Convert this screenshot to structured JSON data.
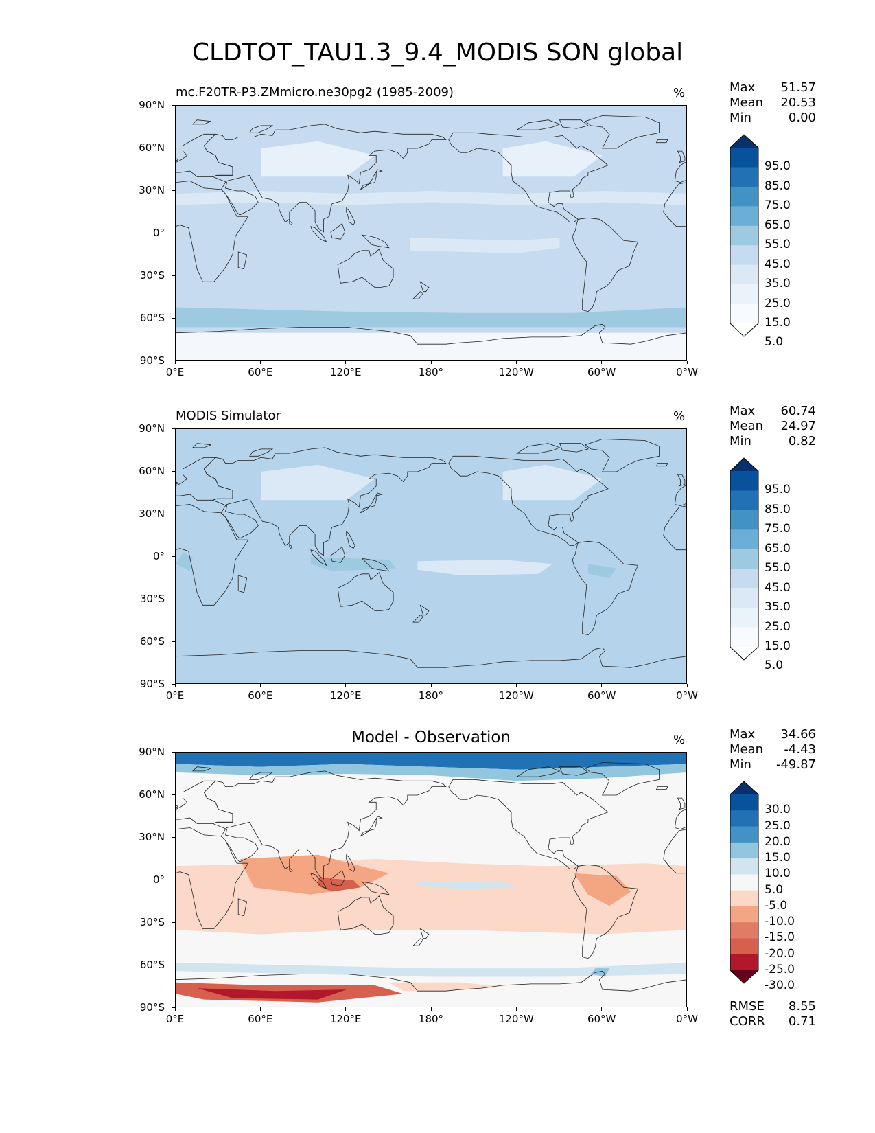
{
  "figure": {
    "title": "CLDTOT_TAU1.3_9.4_MODIS SON global"
  },
  "axes": {
    "lat_labels": [
      "90°N",
      "60°N",
      "30°N",
      "0°",
      "30°S",
      "60°S",
      "90°S"
    ],
    "lon_labels": [
      "0°E",
      "60°E",
      "120°E",
      "180°",
      "120°W",
      "60°W",
      "0°W"
    ]
  },
  "panels": [
    {
      "subtitle": "mc.F20TR-P3.ZMmicro.ne30pg2 (1985-2009)",
      "units": "%",
      "stats": [
        {
          "label": "Max",
          "value": "51.57"
        },
        {
          "label": "Mean",
          "value": "20.53"
        },
        {
          "label": "Min",
          "value": "0.00"
        }
      ],
      "colorbar": {
        "labels": [
          "95.0",
          "85.0",
          "75.0",
          "65.0",
          "55.0",
          "45.0",
          "35.0",
          "25.0",
          "15.0",
          "5.0"
        ],
        "colors": [
          "#08306b",
          "#08519c",
          "#2171b5",
          "#4292c6",
          "#6baed6",
          "#9ecae1",
          "#c6dbef",
          "#dbe9f6",
          "#eaf2fa",
          "#f7fbff",
          "#ffffff"
        ]
      },
      "map_colors": {
        "base": "#c6dbef",
        "land": "#e8f0fa",
        "tropics_clear": "#dbe9f6",
        "storm_track": "#9ecae1",
        "polar": "#f4f8fc"
      }
    },
    {
      "subtitle": "MODIS Simulator",
      "units": "%",
      "stats": [
        {
          "label": "Max",
          "value": "60.74"
        },
        {
          "label": "Mean",
          "value": "24.97"
        },
        {
          "label": "Min",
          "value": "0.82"
        }
      ],
      "colorbar": {
        "labels": [
          "95.0",
          "85.0",
          "75.0",
          "65.0",
          "55.0",
          "45.0",
          "35.0",
          "25.0",
          "15.0",
          "5.0"
        ],
        "colors": [
          "#08306b",
          "#08519c",
          "#2171b5",
          "#4292c6",
          "#6baed6",
          "#9ecae1",
          "#c6dbef",
          "#dbe9f6",
          "#eaf2fa",
          "#f7fbff",
          "#ffffff"
        ]
      },
      "map_colors": {
        "base": "#b5d3ea",
        "land": "#dbe9f6",
        "tropics_clear": "#dbe9f6",
        "storm_track": "#9ecae1",
        "polar": "#c6dbef"
      }
    },
    {
      "title": "Model - Observation",
      "units": "%",
      "stats": [
        {
          "label": "Max",
          "value": "34.66"
        },
        {
          "label": "Mean",
          "value": "-4.43"
        },
        {
          "label": "Min",
          "value": "-49.87"
        }
      ],
      "colorbar": {
        "labels": [
          "30.0",
          "25.0",
          "20.0",
          "15.0",
          "10.0",
          "5.0",
          "-5.0",
          "-10.0",
          "-15.0",
          "-20.0",
          "-25.0",
          "-30.0"
        ],
        "colors": [
          "#08306b",
          "#08519c",
          "#2171b5",
          "#4292c6",
          "#92c5de",
          "#d1e5f0",
          "#f7f7f7",
          "#fbd8c8",
          "#f4a582",
          "#e07b66",
          "#d6604d",
          "#b2182b",
          "#67001f"
        ]
      },
      "metrics": [
        {
          "label": "RMSE",
          "value": "8.55"
        },
        {
          "label": "CORR",
          "value": "0.71"
        }
      ],
      "map_colors": {
        "base": "#f7f7f7",
        "light_red": "#fbd8c8",
        "mid_red": "#f4a582",
        "dark_red": "#d6604d",
        "deep_red": "#b2182b",
        "light_blue": "#d1e5f0",
        "mid_blue": "#92c5de",
        "dark_blue": "#2171b5"
      }
    }
  ]
}
